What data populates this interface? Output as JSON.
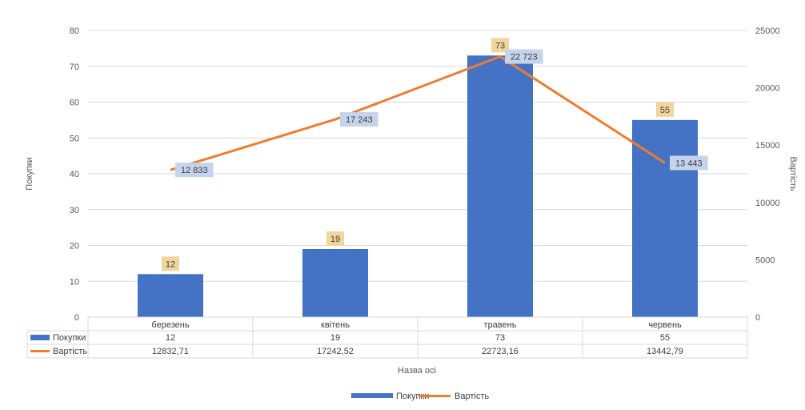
{
  "chart_data": {
    "type": "bar",
    "categories": [
      "березень",
      "квітень",
      "травень",
      "червень"
    ],
    "series": [
      {
        "name": "Покупки",
        "type": "bar",
        "axis": "left",
        "color": "#4472C4",
        "values": [
          12,
          19,
          73,
          55
        ],
        "data_labels": [
          "12",
          "19",
          "73",
          "55"
        ],
        "table_values": [
          "12",
          "19",
          "73",
          "55"
        ]
      },
      {
        "name": "Вартість",
        "type": "line",
        "axis": "right",
        "color": "#ED7D31",
        "values": [
          12832.71,
          17242.52,
          22723.16,
          13442.79
        ],
        "data_labels": [
          "12 833",
          "17 243",
          "22 723",
          "13 443"
        ],
        "table_values": [
          "12832,71",
          "17242,52",
          "22723,16",
          "13442,79"
        ]
      }
    ],
    "xlabel": "Назва осі",
    "ylabel": "Покупки",
    "y2label": "Вартість",
    "ylim": [
      0,
      80
    ],
    "y_ticks": [
      0,
      10,
      20,
      30,
      40,
      50,
      60,
      70,
      80
    ],
    "y2lim": [
      0,
      25000
    ],
    "y2_ticks": [
      0,
      5000,
      10000,
      15000,
      20000,
      25000
    ],
    "grid": true,
    "legend": "bottom",
    "data_table": true,
    "bar_label_bg": "#F2D59B",
    "line_label_bg": "#C5D3EB"
  }
}
